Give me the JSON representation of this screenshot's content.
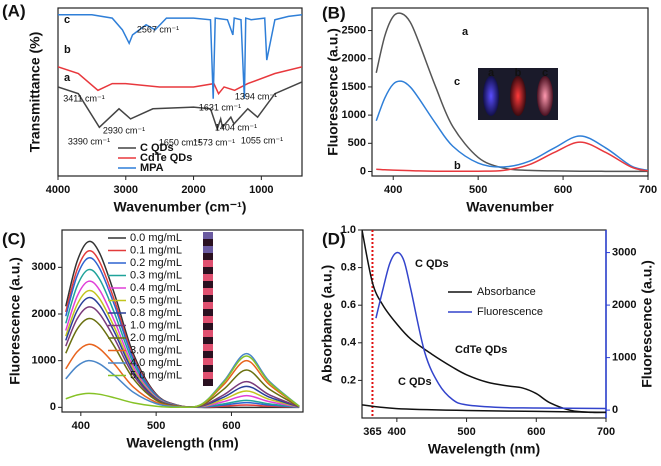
{
  "chart_data": [
    {
      "type": "line",
      "panel_label": "(A)",
      "smooth": false,
      "xlabel": "Wavenumber (cm⁻¹)",
      "ylabel": "Transmittance (%)",
      "xlim": [
        4000,
        400
      ],
      "ylim": [
        0,
        100
      ],
      "xticks": [
        4000,
        3000,
        2000,
        1000
      ],
      "legend_loc": "lower center",
      "series": [
        {
          "name": "C QDs",
          "tag": "a",
          "color": "#444444",
          "x": [
            4000,
            3700,
            3390,
            3100,
            2930,
            2600,
            2000,
            1750,
            1650,
            1600,
            1573,
            1450,
            1404,
            1200,
            1055,
            800,
            400
          ],
          "values": [
            53,
            49,
            29,
            40,
            34,
            40,
            41,
            40,
            28,
            34,
            29,
            35,
            31,
            40,
            35,
            49,
            56
          ]
        },
        {
          "name": "CdTe QDs",
          "tag": "b",
          "color": "#e8383d",
          "x": [
            4000,
            3700,
            3411,
            3200,
            3000,
            2500,
            2000,
            1700,
            1631,
            1550,
            1394,
            1200,
            800,
            400
          ],
          "values": [
            65,
            61,
            51,
            55,
            55,
            53,
            53,
            55,
            49,
            53,
            51,
            55,
            61,
            65
          ]
        },
        {
          "name": "MPA",
          "tag": "c",
          "color": "#2f7fd8",
          "x": [
            4000,
            3500,
            3200,
            3050,
            2950,
            2900,
            2700,
            2567,
            2400,
            2000,
            1750,
            1710,
            1680,
            1500,
            1420,
            1400,
            1300,
            1250,
            1230,
            1150,
            950,
            920,
            800,
            600,
            400
          ],
          "values": [
            96,
            96,
            94,
            87,
            79,
            84,
            90,
            87,
            94,
            94,
            93,
            46,
            94,
            93,
            84,
            94,
            93,
            46,
            94,
            93,
            94,
            69,
            93,
            95,
            96
          ]
        }
      ],
      "annotations": [
        {
          "text": "2567 cm⁻¹",
          "color": "#2f7fd8"
        },
        {
          "text": "3411 cm⁻¹",
          "color": "#e8383d"
        },
        {
          "text": "1631 cm⁻¹",
          "color": "#e8383d"
        },
        {
          "text": "1394 cm⁻¹",
          "color": "#e8383d"
        },
        {
          "text": "3390 cm⁻¹",
          "color": "#333333"
        },
        {
          "text": "2930 cm⁻¹",
          "color": "#333333"
        },
        {
          "text": "1650 cm⁻¹",
          "color": "#333333"
        },
        {
          "text": "1573 cm⁻¹",
          "color": "#333333"
        },
        {
          "text": "1404 cm⁻¹",
          "color": "#333333"
        },
        {
          "text": "1055 cm⁻¹",
          "color": "#333333"
        }
      ]
    },
    {
      "type": "line",
      "panel_label": "(B)",
      "smooth": true,
      "xlabel": "Wavenumber",
      "ylabel": "Fluorescence (a.u.)",
      "xlim": [
        375,
        700
      ],
      "ylim": [
        -80,
        2900
      ],
      "xticks": [
        400,
        500,
        600,
        700
      ],
      "yticks": [
        0,
        500,
        1000,
        1500,
        2000,
        2500
      ],
      "x": [
        380,
        390,
        400,
        410,
        420,
        430,
        450,
        470,
        500,
        530,
        560,
        590,
        620,
        650,
        680,
        700
      ],
      "series": [
        {
          "tag": "a",
          "color": "#555555",
          "values": [
            1750,
            2400,
            2750,
            2800,
            2650,
            2300,
            1500,
            800,
            250,
            60,
            20,
            10,
            5,
            3,
            2,
            2
          ]
        },
        {
          "tag": "c",
          "color": "#2f7fd8",
          "values": [
            900,
            1300,
            1550,
            1600,
            1500,
            1300,
            850,
            450,
            150,
            80,
            180,
            420,
            630,
            420,
            100,
            20
          ]
        },
        {
          "tag": "b",
          "color": "#e8383d",
          "values": [
            40,
            30,
            25,
            20,
            15,
            10,
            5,
            5,
            5,
            20,
            120,
            340,
            520,
            340,
            80,
            10
          ]
        }
      ],
      "inset_labels": [
        "a",
        "b",
        "c"
      ]
    },
    {
      "type": "line",
      "panel_label": "(C)",
      "smooth": true,
      "xlabel": "Wavelength (nm)",
      "ylabel": "Fluorescence (a.u.)",
      "xlim": [
        375,
        695
      ],
      "ylim": [
        -100,
        3800
      ],
      "xticks": [
        400,
        500,
        600
      ],
      "yticks": [
        0,
        1000,
        2000,
        3000
      ],
      "legend_loc": "upper center",
      "x": [
        380,
        395,
        410,
        425,
        445,
        470,
        500,
        530,
        560,
        590,
        620,
        650,
        690
      ],
      "series": [
        {
          "name": "0.0 mg/mL",
          "color": "#333333",
          "values": [
            2166,
            3124,
            3550,
            3302,
            2414,
            1136,
            284,
            39,
            0,
            0,
            0,
            0,
            0
          ]
        },
        {
          "name": "0.1 mg/mL",
          "color": "#e23b3b",
          "values": [
            2044,
            2948,
            3350,
            3116,
            2278,
            1072,
            268,
            37,
            3,
            25,
            50,
            25,
            1
          ]
        },
        {
          "name": "0.2 mg/mL",
          "color": "#2f63d0",
          "values": [
            1952,
            2816,
            3200,
            2976,
            2176,
            1024,
            256,
            35,
            6,
            49,
            100,
            49,
            2
          ]
        },
        {
          "name": "0.3 mg/mL",
          "color": "#1fa39a",
          "values": [
            1800,
            2596,
            2950,
            2744,
            2006,
            944,
            236,
            32,
            8,
            74,
            150,
            74,
            3
          ]
        },
        {
          "name": "0.4 mg/mL",
          "color": "#e040d8",
          "values": [
            1647,
            2376,
            2700,
            2511,
            1836,
            864,
            216,
            30,
            14,
            123,
            250,
            123,
            5
          ]
        },
        {
          "name": "0.5 mg/mL",
          "color": "#c2c41e",
          "values": [
            1525,
            2200,
            2500,
            2325,
            1700,
            800,
            200,
            28,
            20,
            172,
            350,
            172,
            7
          ]
        },
        {
          "name": "0.8 mg/mL",
          "color": "#2a3f9a",
          "values": [
            1434,
            2068,
            2350,
            2186,
            1598,
            752,
            188,
            26,
            25,
            221,
            450,
            221,
            9
          ]
        },
        {
          "name": "1.0 mg/mL",
          "color": "#7a3a7a",
          "values": [
            1312,
            1892,
            2150,
            2000,
            1462,
            688,
            172,
            24,
            31,
            270,
            550,
            270,
            11
          ]
        },
        {
          "name": "2.0 mg/mL",
          "color": "#6a7010",
          "values": [
            1159,
            1672,
            1900,
            1767,
            1292,
            608,
            152,
            21,
            45,
            392,
            800,
            392,
            16
          ]
        },
        {
          "name": "3.0 mg/mL",
          "color": "#e8641e",
          "values": [
            824,
            1188,
            1350,
            1256,
            918,
            432,
            108,
            15,
            56,
            490,
            1000,
            490,
            20
          ]
        },
        {
          "name": "4.0 mg/mL",
          "color": "#4a86c8",
          "values": [
            610,
            880,
            1000,
            930,
            680,
            320,
            80,
            11,
            64,
            564,
            1150,
            564,
            23
          ]
        },
        {
          "name": "5.0 mg/mL",
          "color": "#86c226",
          "values": [
            183,
            264,
            300,
            279,
            204,
            96,
            24,
            3,
            62,
            539,
            1100,
            539,
            22
          ]
        }
      ]
    },
    {
      "type": "line",
      "panel_label": "(D)",
      "smooth": true,
      "xlabel": "Wavelength (nm)",
      "ylabel": "Absorbance (a.u.)",
      "y2label": "Fluorescence (a.u.)",
      "y2color": "#2a3fd6",
      "xlim": [
        350,
        700
      ],
      "ylim": [
        0,
        1
      ],
      "y2lim": [
        -150,
        3430
      ],
      "xticks": [
        400,
        500,
        600,
        700
      ],
      "yticks": [
        0.2,
        0.4,
        0.6,
        0.8,
        {
          "value": 1,
          "label": "1.0"
        }
      ],
      "y2ticks": [
        0,
        1000,
        2000,
        3000
      ],
      "marker_x": 365,
      "marker_color": "#e01010",
      "legend_loc": "upper right",
      "legend": [
        {
          "name": "Absorbance",
          "color": "#111111"
        },
        {
          "name": "Fluorescence",
          "color": "#3344cc"
        }
      ],
      "series": [
        {
          "label": "CdTe QDs",
          "color": "#111111",
          "x": [
            350,
            365,
            380,
            400,
            420,
            450,
            480,
            500,
            530,
            560,
            580,
            600,
            620,
            650,
            680,
            700
          ],
          "values": [
            1.0,
            0.72,
            0.6,
            0.5,
            0.42,
            0.34,
            0.27,
            0.23,
            0.19,
            0.17,
            0.16,
            0.13,
            0.08,
            0.04,
            0.03,
            0.03
          ]
        },
        {
          "label": "C QDs",
          "color": "#111111",
          "x": [
            350,
            400,
            500,
            600,
            700
          ],
          "values": [
            0.07,
            0.05,
            0.04,
            0.035,
            0.03
          ]
        },
        {
          "label": "C QDs",
          "color": "#3344cc",
          "axis": "y2",
          "x": [
            370,
            380,
            390,
            400,
            410,
            420,
            440,
            460,
            480,
            500,
            550,
            600,
            700
          ],
          "values": [
            1750,
            2300,
            2800,
            3000,
            2850,
            2300,
            1100,
            500,
            200,
            100,
            50,
            40,
            30
          ]
        }
      ]
    }
  ]
}
